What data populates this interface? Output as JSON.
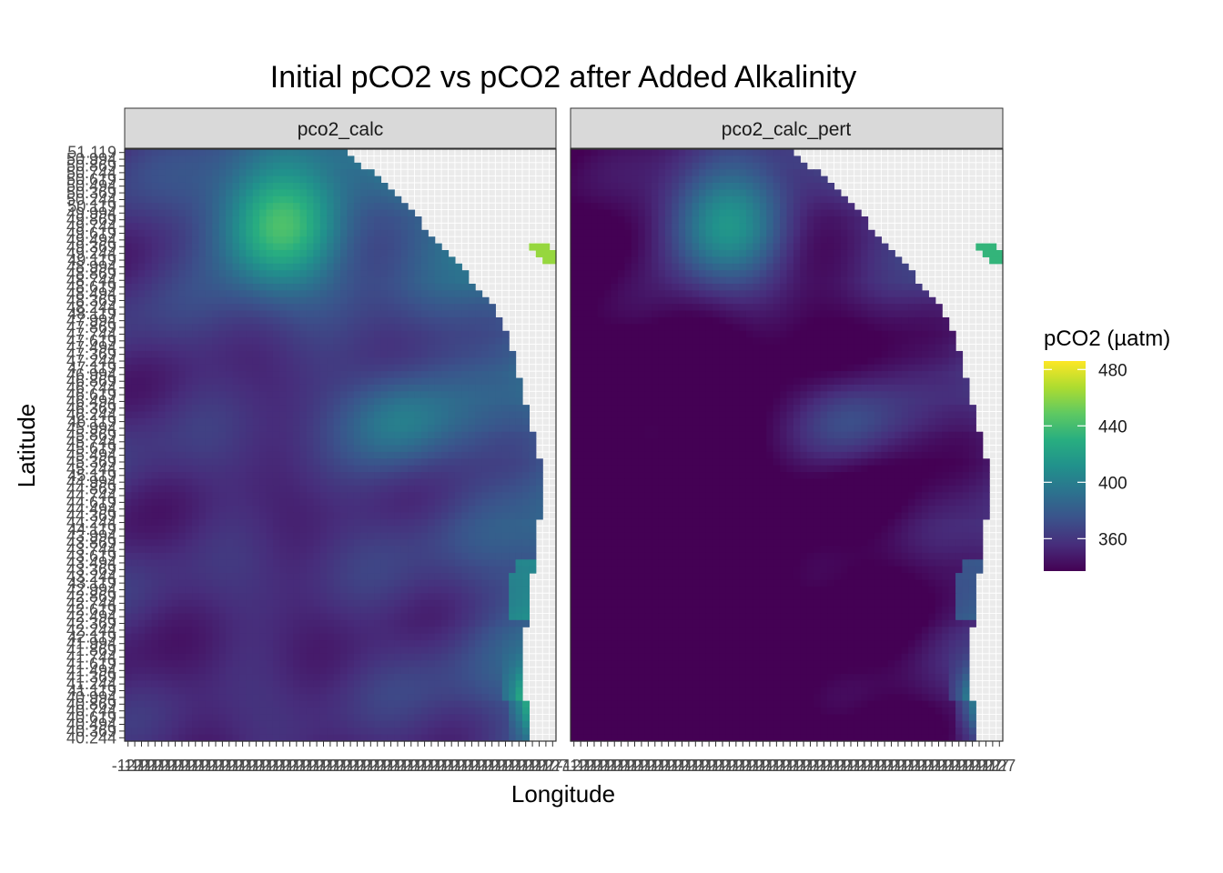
{
  "chart_data": {
    "type": "heatmap",
    "title": "Initial pCO2 vs pCO2 after Added Alkalinity",
    "xlabel": "Longitude",
    "ylabel": "Latitude",
    "facets": [
      {
        "name": "pco2_calc",
        "offset": 0
      },
      {
        "name": "pco2_calc_pert",
        "offset": -28
      }
    ],
    "y_ticks": [
      "40.244",
      "40.369",
      "40.494",
      "40.619",
      "40.744",
      "40.869",
      "40.994",
      "41.119",
      "41.244",
      "41.369",
      "41.494",
      "41.619",
      "41.744",
      "41.869",
      "41.994",
      "42.119",
      "42.244",
      "42.369",
      "42.494",
      "42.619",
      "42.744",
      "42.869",
      "42.994",
      "43.119",
      "43.244",
      "43.369",
      "43.494",
      "43.619",
      "43.744",
      "43.869",
      "43.994",
      "44.119",
      "44.244",
      "44.369",
      "44.494",
      "44.619",
      "44.744",
      "44.869",
      "44.994",
      "45.119",
      "45.244",
      "45.369",
      "45.494",
      "45.619",
      "45.744",
      "45.869",
      "45.994",
      "46.119",
      "46.244",
      "46.369",
      "46.494",
      "46.619",
      "46.744",
      "46.869",
      "46.994",
      "47.119",
      "47.244",
      "47.369",
      "47.494",
      "47.619",
      "47.744",
      "47.869",
      "47.994",
      "48.119",
      "48.244",
      "48.369",
      "48.494",
      "48.619",
      "48.744",
      "48.869",
      "48.994",
      "49.119",
      "49.244",
      "49.369",
      "49.494",
      "49.619",
      "49.744",
      "49.869",
      "49.994",
      "50.119",
      "50.244",
      "50.369",
      "50.494",
      "50.619",
      "50.744",
      "50.869",
      "50.994",
      "51.119"
    ],
    "x_tick_label_sample": "-127",
    "legend": {
      "title": "pCO2 (µatm)",
      "breaks": [
        360,
        400,
        440,
        480
      ],
      "break_labels": [
        "360",
        "400",
        "440",
        "480"
      ],
      "range": [
        337,
        486
      ],
      "palette": "viridis",
      "placement": "right"
    },
    "grid": true
  }
}
